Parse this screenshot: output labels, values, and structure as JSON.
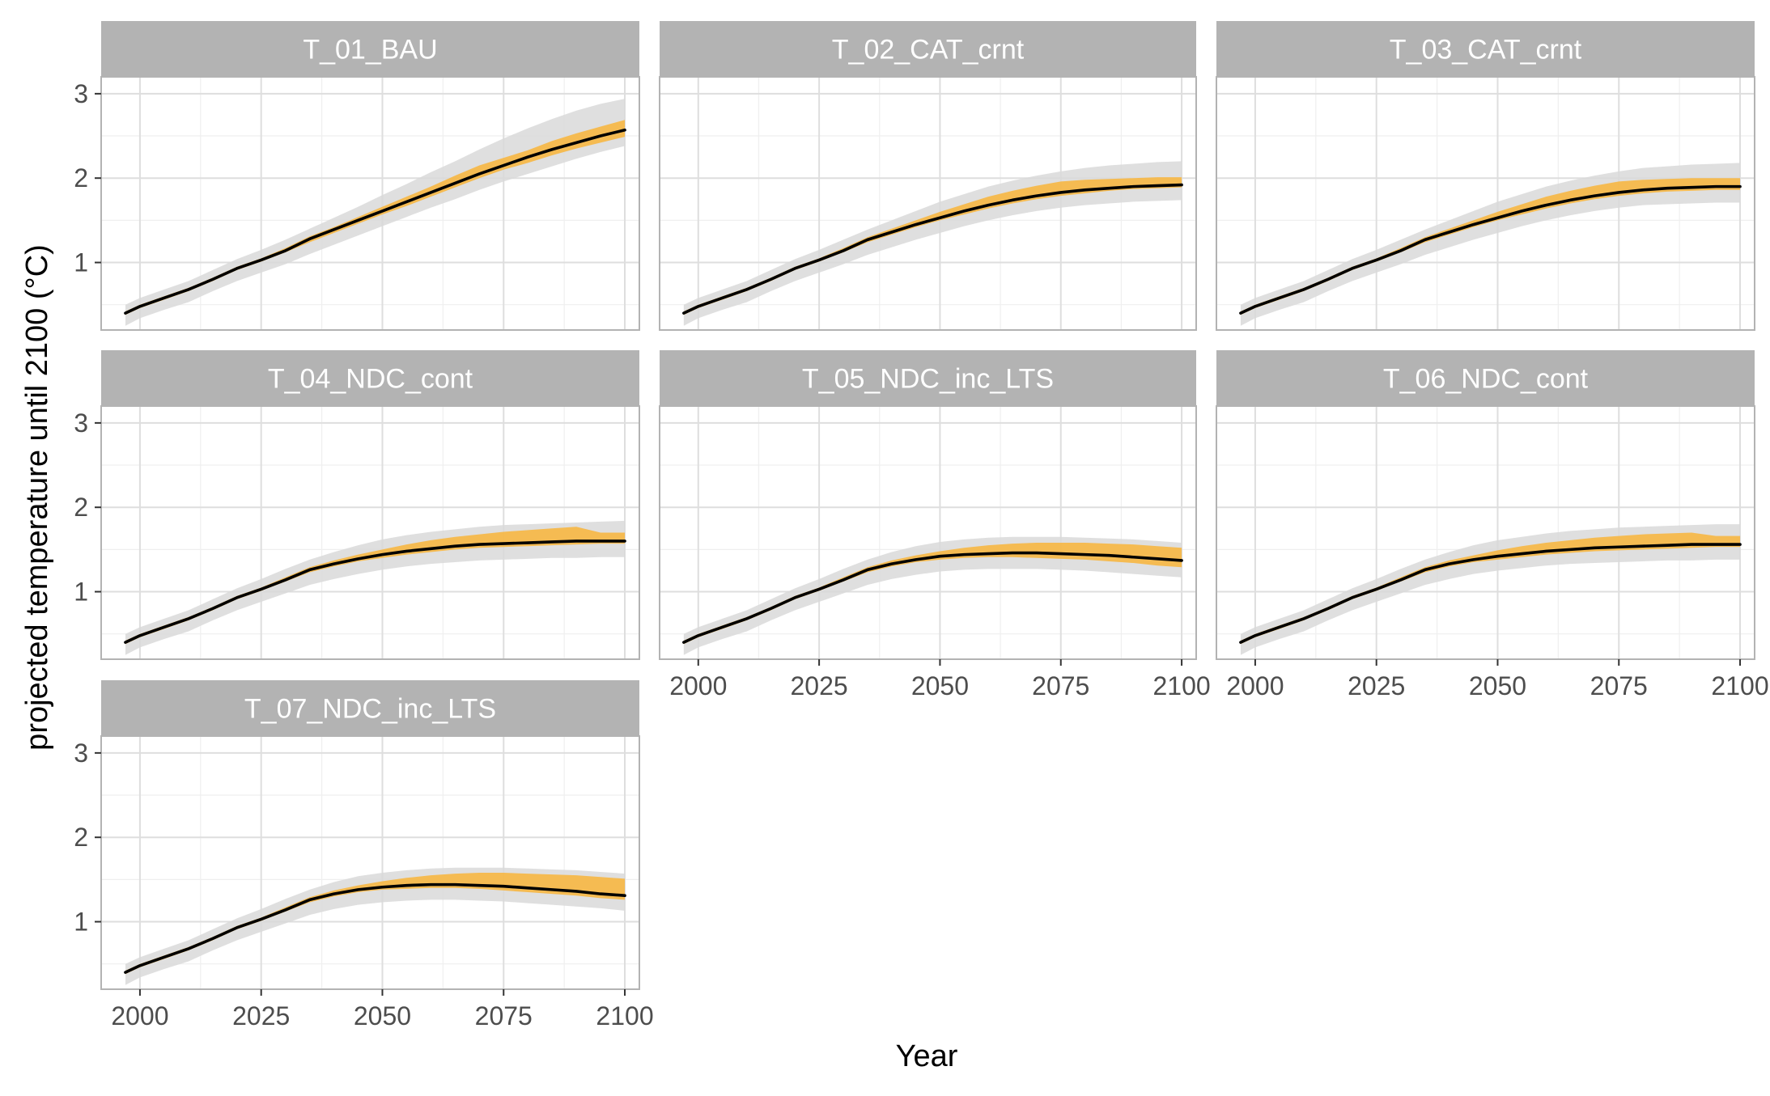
{
  "chart_data": {
    "type": "line",
    "layout": "faceted small multiples (3 columns)",
    "xlabel": "Year",
    "ylabel": "projected temperature until 2100 (°C)",
    "xlim": [
      1992,
      2103
    ],
    "ylim": [
      0.2,
      3.2
    ],
    "xticks": [
      2000,
      2025,
      2050,
      2075,
      2100
    ],
    "yticks": [
      1,
      2,
      3
    ],
    "grid": true,
    "colors": {
      "line": "#000000",
      "inner_band": "#f5b84a",
      "outer_band": "#d9d9d9",
      "strip_bg": "#b3b3b3",
      "strip_text": "#ffffff",
      "grid_major": "#dedede",
      "grid_minor": "#efefef",
      "panel_border": "#b3b3b3"
    },
    "years": [
      1997,
      2000,
      2005,
      2010,
      2015,
      2020,
      2025,
      2030,
      2035,
      2040,
      2045,
      2050,
      2055,
      2060,
      2065,
      2070,
      2075,
      2080,
      2085,
      2090,
      2095,
      2100
    ],
    "panels": [
      {
        "title": "T_01_BAU",
        "median": [
          0.4,
          0.48,
          0.58,
          0.68,
          0.8,
          0.93,
          1.03,
          1.14,
          1.28,
          1.39,
          1.5,
          1.61,
          1.72,
          1.83,
          1.94,
          2.05,
          2.15,
          2.25,
          2.34,
          2.42,
          2.5,
          2.57
        ],
        "inner_low": [
          0.38,
          0.46,
          0.56,
          0.66,
          0.78,
          0.91,
          1.01,
          1.12,
          1.24,
          1.35,
          1.46,
          1.57,
          1.67,
          1.78,
          1.89,
          2.0,
          2.1,
          2.18,
          2.27,
          2.35,
          2.42,
          2.49
        ],
        "inner_high": [
          0.42,
          0.5,
          0.6,
          0.7,
          0.82,
          0.95,
          1.05,
          1.17,
          1.31,
          1.42,
          1.54,
          1.66,
          1.78,
          1.9,
          2.03,
          2.15,
          2.24,
          2.33,
          2.44,
          2.53,
          2.61,
          2.69
        ],
        "outer_low": [
          0.25,
          0.34,
          0.44,
          0.53,
          0.66,
          0.78,
          0.88,
          0.98,
          1.1,
          1.21,
          1.32,
          1.43,
          1.54,
          1.65,
          1.75,
          1.86,
          1.96,
          2.05,
          2.14,
          2.23,
          2.31,
          2.38
        ],
        "outer_high": [
          0.5,
          0.58,
          0.68,
          0.78,
          0.91,
          1.04,
          1.15,
          1.27,
          1.4,
          1.53,
          1.66,
          1.8,
          1.93,
          2.07,
          2.2,
          2.34,
          2.47,
          2.59,
          2.7,
          2.8,
          2.88,
          2.94
        ]
      },
      {
        "title": "T_02_CAT_crnt",
        "median": [
          0.4,
          0.48,
          0.58,
          0.68,
          0.8,
          0.93,
          1.03,
          1.14,
          1.27,
          1.36,
          1.45,
          1.53,
          1.61,
          1.68,
          1.74,
          1.79,
          1.83,
          1.86,
          1.88,
          1.9,
          1.91,
          1.92
        ],
        "inner_low": [
          0.38,
          0.46,
          0.56,
          0.66,
          0.78,
          0.91,
          1.01,
          1.12,
          1.24,
          1.33,
          1.42,
          1.5,
          1.57,
          1.64,
          1.7,
          1.75,
          1.79,
          1.82,
          1.85,
          1.87,
          1.88,
          1.89
        ],
        "inner_high": [
          0.42,
          0.5,
          0.6,
          0.7,
          0.82,
          0.95,
          1.05,
          1.17,
          1.3,
          1.4,
          1.5,
          1.6,
          1.69,
          1.78,
          1.85,
          1.91,
          1.96,
          1.98,
          1.99,
          2.0,
          2.01,
          2.01
        ],
        "outer_low": [
          0.25,
          0.34,
          0.44,
          0.53,
          0.66,
          0.78,
          0.88,
          0.98,
          1.09,
          1.18,
          1.27,
          1.35,
          1.43,
          1.5,
          1.56,
          1.61,
          1.65,
          1.68,
          1.7,
          1.72,
          1.73,
          1.74
        ],
        "outer_high": [
          0.5,
          0.58,
          0.68,
          0.78,
          0.91,
          1.04,
          1.15,
          1.27,
          1.39,
          1.5,
          1.61,
          1.72,
          1.81,
          1.9,
          1.97,
          2.03,
          2.08,
          2.12,
          2.15,
          2.17,
          2.19,
          2.2
        ]
      },
      {
        "title": "T_03_CAT_crnt",
        "median": [
          0.4,
          0.48,
          0.58,
          0.68,
          0.8,
          0.93,
          1.03,
          1.14,
          1.27,
          1.36,
          1.45,
          1.53,
          1.61,
          1.68,
          1.74,
          1.79,
          1.83,
          1.86,
          1.88,
          1.89,
          1.9,
          1.9
        ],
        "inner_low": [
          0.38,
          0.46,
          0.56,
          0.66,
          0.78,
          0.91,
          1.01,
          1.12,
          1.24,
          1.33,
          1.42,
          1.5,
          1.57,
          1.64,
          1.7,
          1.75,
          1.79,
          1.82,
          1.84,
          1.85,
          1.86,
          1.86
        ],
        "inner_high": [
          0.42,
          0.5,
          0.6,
          0.7,
          0.82,
          0.95,
          1.05,
          1.17,
          1.3,
          1.4,
          1.5,
          1.6,
          1.69,
          1.78,
          1.85,
          1.91,
          1.96,
          1.98,
          1.99,
          2.0,
          2.0,
          2.0
        ],
        "outer_low": [
          0.25,
          0.34,
          0.44,
          0.53,
          0.66,
          0.78,
          0.88,
          0.98,
          1.09,
          1.18,
          1.27,
          1.35,
          1.43,
          1.5,
          1.56,
          1.61,
          1.65,
          1.68,
          1.69,
          1.7,
          1.71,
          1.71
        ],
        "outer_high": [
          0.5,
          0.58,
          0.68,
          0.78,
          0.91,
          1.04,
          1.15,
          1.27,
          1.39,
          1.5,
          1.61,
          1.72,
          1.81,
          1.9,
          1.97,
          2.03,
          2.08,
          2.12,
          2.14,
          2.16,
          2.17,
          2.18
        ]
      },
      {
        "title": "T_04_NDC_cont",
        "median": [
          0.4,
          0.48,
          0.58,
          0.68,
          0.8,
          0.93,
          1.03,
          1.14,
          1.26,
          1.33,
          1.39,
          1.44,
          1.48,
          1.51,
          1.54,
          1.56,
          1.57,
          1.58,
          1.59,
          1.6,
          1.6,
          1.6
        ],
        "inner_low": [
          0.38,
          0.46,
          0.56,
          0.66,
          0.78,
          0.91,
          1.01,
          1.12,
          1.23,
          1.3,
          1.36,
          1.4,
          1.44,
          1.47,
          1.5,
          1.52,
          1.53,
          1.54,
          1.55,
          1.56,
          1.57,
          1.57
        ],
        "inner_high": [
          0.42,
          0.5,
          0.6,
          0.7,
          0.82,
          0.95,
          1.05,
          1.17,
          1.29,
          1.37,
          1.44,
          1.5,
          1.56,
          1.61,
          1.65,
          1.68,
          1.71,
          1.73,
          1.75,
          1.77,
          1.7,
          1.7
        ],
        "outer_low": [
          0.25,
          0.34,
          0.44,
          0.53,
          0.66,
          0.78,
          0.88,
          0.98,
          1.08,
          1.15,
          1.21,
          1.26,
          1.3,
          1.33,
          1.35,
          1.37,
          1.38,
          1.39,
          1.4,
          1.4,
          1.41,
          1.41
        ],
        "outer_high": [
          0.5,
          0.58,
          0.68,
          0.78,
          0.91,
          1.04,
          1.15,
          1.27,
          1.38,
          1.47,
          1.55,
          1.62,
          1.67,
          1.71,
          1.74,
          1.77,
          1.79,
          1.8,
          1.81,
          1.82,
          1.83,
          1.84
        ]
      },
      {
        "title": "T_05_NDC_inc_LTS",
        "median": [
          0.4,
          0.48,
          0.58,
          0.68,
          0.8,
          0.93,
          1.03,
          1.14,
          1.26,
          1.33,
          1.38,
          1.42,
          1.44,
          1.45,
          1.46,
          1.46,
          1.45,
          1.44,
          1.43,
          1.41,
          1.39,
          1.37
        ],
        "inner_low": [
          0.38,
          0.46,
          0.56,
          0.66,
          0.78,
          0.91,
          1.01,
          1.12,
          1.23,
          1.3,
          1.35,
          1.38,
          1.4,
          1.41,
          1.41,
          1.4,
          1.39,
          1.38,
          1.36,
          1.34,
          1.31,
          1.29
        ],
        "inner_high": [
          0.42,
          0.5,
          0.6,
          0.7,
          0.82,
          0.95,
          1.05,
          1.17,
          1.29,
          1.37,
          1.43,
          1.48,
          1.52,
          1.55,
          1.57,
          1.58,
          1.58,
          1.58,
          1.57,
          1.56,
          1.54,
          1.52
        ],
        "outer_low": [
          0.25,
          0.34,
          0.44,
          0.53,
          0.66,
          0.78,
          0.88,
          0.98,
          1.08,
          1.15,
          1.2,
          1.24,
          1.26,
          1.27,
          1.27,
          1.27,
          1.26,
          1.25,
          1.23,
          1.21,
          1.19,
          1.17
        ],
        "outer_high": [
          0.5,
          0.58,
          0.68,
          0.78,
          0.91,
          1.04,
          1.15,
          1.27,
          1.38,
          1.47,
          1.54,
          1.59,
          1.62,
          1.64,
          1.65,
          1.65,
          1.65,
          1.64,
          1.63,
          1.62,
          1.6,
          1.58
        ]
      },
      {
        "title": "T_06_NDC_cont",
        "median": [
          0.4,
          0.48,
          0.58,
          0.68,
          0.8,
          0.93,
          1.03,
          1.14,
          1.26,
          1.33,
          1.38,
          1.42,
          1.45,
          1.48,
          1.5,
          1.52,
          1.53,
          1.54,
          1.55,
          1.56,
          1.56,
          1.56
        ],
        "inner_low": [
          0.38,
          0.46,
          0.56,
          0.66,
          0.78,
          0.91,
          1.01,
          1.12,
          1.23,
          1.3,
          1.35,
          1.38,
          1.41,
          1.44,
          1.46,
          1.48,
          1.49,
          1.5,
          1.51,
          1.52,
          1.53,
          1.53
        ],
        "inner_high": [
          0.42,
          0.5,
          0.6,
          0.7,
          0.82,
          0.95,
          1.05,
          1.17,
          1.29,
          1.37,
          1.43,
          1.49,
          1.54,
          1.58,
          1.61,
          1.64,
          1.66,
          1.68,
          1.69,
          1.7,
          1.66,
          1.66
        ],
        "outer_low": [
          0.25,
          0.34,
          0.44,
          0.53,
          0.66,
          0.78,
          0.88,
          0.98,
          1.08,
          1.15,
          1.21,
          1.25,
          1.28,
          1.31,
          1.33,
          1.34,
          1.35,
          1.36,
          1.37,
          1.37,
          1.38,
          1.38
        ],
        "outer_high": [
          0.5,
          0.58,
          0.68,
          0.78,
          0.91,
          1.04,
          1.15,
          1.27,
          1.38,
          1.47,
          1.55,
          1.61,
          1.65,
          1.69,
          1.72,
          1.74,
          1.76,
          1.77,
          1.78,
          1.79,
          1.8,
          1.8
        ]
      },
      {
        "title": "T_07_NDC_inc_LTS",
        "median": [
          0.4,
          0.48,
          0.58,
          0.68,
          0.8,
          0.93,
          1.03,
          1.14,
          1.26,
          1.33,
          1.38,
          1.41,
          1.43,
          1.44,
          1.44,
          1.43,
          1.42,
          1.4,
          1.38,
          1.36,
          1.33,
          1.31
        ],
        "inner_low": [
          0.38,
          0.46,
          0.56,
          0.66,
          0.78,
          0.91,
          1.01,
          1.12,
          1.23,
          1.3,
          1.35,
          1.38,
          1.39,
          1.4,
          1.4,
          1.39,
          1.37,
          1.35,
          1.33,
          1.31,
          1.28,
          1.26
        ],
        "inner_high": [
          0.42,
          0.5,
          0.6,
          0.7,
          0.82,
          0.95,
          1.05,
          1.17,
          1.29,
          1.37,
          1.43,
          1.48,
          1.52,
          1.55,
          1.57,
          1.58,
          1.58,
          1.57,
          1.56,
          1.55,
          1.53,
          1.51
        ],
        "outer_low": [
          0.25,
          0.34,
          0.44,
          0.53,
          0.66,
          0.78,
          0.88,
          0.98,
          1.08,
          1.15,
          1.2,
          1.23,
          1.25,
          1.26,
          1.26,
          1.25,
          1.24,
          1.22,
          1.2,
          1.18,
          1.16,
          1.13
        ],
        "outer_high": [
          0.5,
          0.58,
          0.68,
          0.78,
          0.91,
          1.04,
          1.15,
          1.27,
          1.38,
          1.47,
          1.54,
          1.58,
          1.61,
          1.63,
          1.64,
          1.64,
          1.64,
          1.63,
          1.62,
          1.61,
          1.59,
          1.57
        ]
      }
    ]
  }
}
